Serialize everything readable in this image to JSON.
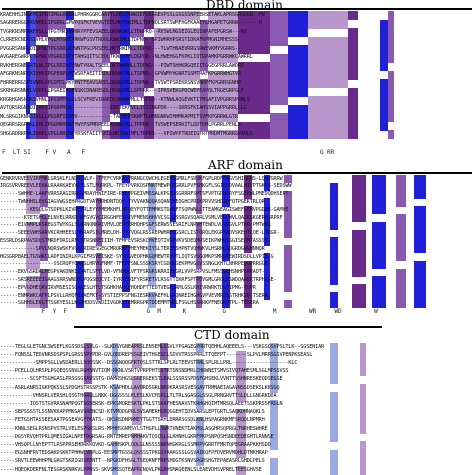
{
  "panels": [
    {
      "title": "DBD domain",
      "consensus": "F  LT SI    F V   A   F                                                                 G RR",
      "sequences": [
        "KRAEHHSINGEMVIPNTIMGLRHNNLPHRKGGRCAAYTLEELQKWWIEFVKGGEVPSSLGSGSSNPEERSETAKLAPRSGQGGGN--FW",
        "SAGRRERGGKKVNHELIPGRRLGPWYQSFKTVEVGTEELHKTRWIMLLTDPNQLSRTSWMFHGFKAAEYLHGAPETGRRW-------H",
        "TVGRKNSMPKKFVSLLTPGTMRSNPHRYPFEVSAEELQKWWSKLLTDWPRQ--RVSWLNGSEIGLEQIWPAFEPGRSW---RV",
        "CLRRERCNDGSIVHLVPGLMTGWEYRKWFGSVTRDQLKWWIMLLTDPNQ--GPIWHRHPSRSTIDKAFRPMGNIMHESSS-",
        "PVGGRSANPRDIIPNLTPGSRRLKYWNTPGCPRSEELHKTRWIMLLTDPQQ---TLWTHNAEVRRGSRWEVKMYVGRRS--",
        "AVGAREGWRPLTRHWLVDGRRIKPYTAHGQITSCEDLTKWWIMFLDGPQR--NLHWEHGGFKPKLIQTRPAMKPGRRWKCAWRRL",
        "RVKHERGNEGRTLNLIPGLRRIHPYNWTYRALTSEELQKTWWMHLLTDPNS---PIWTSHHKRGQEIITGGEGPRRLAWDRT",
        "AFGRKNSNPKKIVHVIPGPERPLMTWSRFAEITIEDLRKWWIMLLTSPNQ--GPVWMYHGNRTSSMTRAFKPGRRWHGTVR",
        "FHRRERRGSPIVNHLVPGSMTLPKYPNTFEAVSAEELQKWWIMLLTDPNQ--TVSWTPSREKRSNSVNRPFKPGRRSGNHP",
        "SKRHGRSNNKLVQPPLLPGREIPSFNSKCDNAREGDLHKWWIMLLSPPRR---IPRSVEKGPDCWEPEAPQLTRGEGRPGLF",
        "KRGRHGNSNDRIVHNLIPGSMTHLCLSCVFREVIRAEDLQKWWVMLLTSPNQ--KTNWLAQGEVKTITMSAFIVPGRRSPANLS",
        "AVTQRSRGNIDIINPIIPGRPHSR-------------INSTEKFVCLISIINGPDR----SKRSFKIAHSSVIAPPGRRLLLG",
        "MLSRGGIKNNSIVGLLPGSRFIDRNV------------TAEHFESKWPTLWHNGNKWIHHMKAPMITSVFKPGRRWLGTR",
        "QEGRRSRGPKKLVHLIPGGMRHSNPYWYPSPMRPEELKKWWVMLLTPPRR--TVSWEPSERKITLDDTKMLPGRRLPENLS",
        "SHGGRDRRPNLIVHPLVPGLRRIMPYRSKFAIITSEDLHKTRWIMFLTDPNS---VPIWYPTRDEIGTRTPRDMTMGRRGPAHLS"
      ],
      "colors": {
        "dark_blue": "#2020d8",
        "mid_blue": "#4a4ae8",
        "dark_purple": "#6a2a8c",
        "mid_purple": "#8a5ab0",
        "light_blue": "#9aa8e0",
        "light_purple": "#b898cc"
      }
    },
    {
      "title": "ARF domain",
      "consensus": "           F  Y  F                      G  M      K          G             M         WR     WD         W",
      "sequences": [
        "GENKRVRVEEVIRFMKLGRSKLFLNDSCWLP--TFEFCVRKASVRANGCQWCHLEGERQGMRLFSRVKFGPLRDFFAGVSHIQRNS-LQNVGRRW",
        "IRGSVRVREEVLEEAALRAAKKAEVVTFLSTLFQRKPL-TFEYPVRKQSPMATMEWPGRGRRLPVFSMKGFLSGIGSDVAALHIYPTGKPS-SEDSWW",
        "------SWHHE-LAAFVRRSRAGIRRGLMRAYHWIFIRE-RYEVPGEIVMSSALKPGEDSGRRRFSMTSFVPTGPHLRYFSGEEWLPMEDQDHSEPT-",
        "------TWNHHSLEVGIAGVWGSEHPRGDTVAYHRHDNTDQF-TYVVAKNQQASQANTNEQGHCPRIKPRVVSHDIPFQTPGERTRLQR",
        "----------KESQLGTSDPKLKIVRFFRLEYYPMEMKHFLHPQEYFQTTEMMKSTDASFTSQPWNLLTTEAMGEAGISWEFLEMVPGDRR-GAMVE",
        "--------KTETSHSLELNVELRRKDFDFGVGVCIRGGHFEIPEVFMENSHHVVCSGIDSSRGVSQARLVSMLVERPWVLQASKSKGERDSRPRF",
        "------EIVNMPLRSREGSTWYKGLSLRRNQNKRIVHVLQEPFRRHQHPSGFSERWSSESRIFLNRVHTEWDLVLVRGVLPTKR-PMTWKR",
        "------SEEEVWHSARVKCRHHEESLHKRAPSILMRELDH-TYTVQGLRSSREPWHRMYGSRCLISTQRQLEKGRKWDVSKEHTLQE-LTRGR-",
        "ESSRLDSRPAVSDQSTMRDFDRILRFLSTRSNKEIIIH-TFMFEVSRSKCHVEQTIVGFVKVSDEQMRSEIKPWHQSSGISEDMTASSSS-",
        "------------SPVLNQRSWSKFVGKPRIRESGEGCMRQRWFPHEYMEKIYSLTEREESHPNTVQHWKVLHSRNLGDGRDGRGHNNQR",
        "HGSGRPBAELTGSWRCLADFINIRLKPGIFRSVEISKE-SYSDGVEQPHKGQMEWTRVDTLIQTSVSGQMKPSMPGEEWIRDSDLLVPIE-G",
        "------------------SSCRQPYGAASLHRVGFNMF-TFEPFSNLSSSKSRYCGDHNGEKPMVGSVSSNGLKHTLNHRPEDGPRRGGE-",
        "------EKVGSRDALHEGPVAKDNKISAATLSFTLVD-VFNWQLVFTFSRGRSKRRIEHGRLVVPSRPVSLFMSSVEHSNHPERRADT-",
        "------SRSREEEEIGAAGSRRSWNDHLPQGSEQCYI-IYRTEDIFYRSRETVLRSGYTIKRFSPTPDVGMLGRGLESWDQARKKTRPHQSE-",
        "------EPVGDHEQRVIRVMSESISGAGESLHTLTSGHKHAHCFHQHDFTTEDTVEGKSRMLGSLKHIVRWRKTDGQIPMG-TQPR",
        "------ENMRWKCAFPLPSVLLRHQFQVAEFKT-SYSTIEPPSFNGIESRKVAEFHLGDQNREIHGHGVPVEVMRSSSTRHKSN-TSERA-",
        "------SGHHSLEKGTTSGKYESLLKGRHDDSVWDIIVGDKTFEMRRGPRTDDEMMTWRLFSGLHSSRRKPFNEGKVTPL-TESERA"
      ]
    },
    {
      "title": "CTD domain",
      "consensus": "                                                                                        ",
      "sequences": [
        "-----TEGLGLETGNCSWSEFLKGSSDSLSVLG--SLKDSYGNEAPRSLENSEMLSSVLYPGAGEGPRRTQEHHLAQEEELS---VSKGSQSVPSLTLK--SGSENIAR",
        "-----FQNSSLTEDVNRSDSPSPLGRSSSPYPDR-GVLQRDREPSSGEIVTHGESCLSDVVTRSSPRRLTTQEFPT-------SLPVLMRRSGSVPENPKSEASL",
        "------------SMPPSGLLWSDAERLLSQQSSK--DSSGNQQGFRTQSLSTTRLSPLRLTEEVSTRNLSPLRLLPRL-------------------KLC",
        "-----PCELLQLHRSPLPGQEQSSNVLRGHSNVTIQM-RKNLVSRTVPRPPHTSSTRTSNSNDMRLCHRWNETSMVSIVQTAHESMLSGLMPSSVSS",
        "----------SCSFTSGHGASLPRSGSGSAVSSTG-DAMRSHGSLGGERGEKSTLEALSSSRSSPDSFGHSEKLVVNTTSSHNRESKEQDSEGSE",
        "-----ASRLANRSIGKPQKSSLSPDGHSTRSSPSTK-KSAPHDLLAVNRDSGRLNKDKRASRSVESGAVTRMNAEIAGAVNSSDSEKSLKKSGQ",
        "-----------VHNSRLVERSHLQSGTHGRGLLNKK-DGGSSSLKLESLKVCMSPLLTLTRLSGASGLSSGLPRNGRVTTSLDLLGNGRKDDA",
        "----------IQSTSTGVRRSNAMPQGTSGSERSK-EPKSMQRESKTLPKLSTSKAFHESNAVSTKRHGHQIMTMRSQLAEETSSKPRSSFRDLN",
        "-----SEPSSSSTLSSNVKKAPPMKGAVSRENCSD-KTVMQDGPRLSVSAMERHSRQGGEHTIDVSARSLEPTGRTLSAQKDHNAQKLS",
        "-----FETGSHTASSEESAATPGSEAVGFTKATS--QKSRSDNPRMEYTGGTTSRHLDRRRSGSDLKNLHSPAGRNKMFSRQDLNPMRH",
        "-----KNNLSEGLRSNSPVSTRLVELESPSRSLRS-MPHHSGNMSYLSTHGPLLSWRTVNEKTIAKMSLASGHRSQPRGLTNRHESWHRE",
        "-----DGSYRVQHTPRLQMESIGALNPETDGRSAG-RNTEMREPNMHAKVTQSQSLGLKHNHLGKRFPKPSNPQSHSNDEEDEGHTLRNNSE",
        "-----VHSQPLLNYEPTTLRSPPRSEHDRKKQVKD-GAHHSKPLQQLGLNSSSSNKNHGKRGLSSMRPVGRRTFMRTQPEGRAAPKKHSDD",
        "-----EGSNHFRVTEDSAKDSKKTPHHWLVDPLG-EESMPTGSSLQSSSSTPKGSYAAKGSSLGSVAIKQFPFDVERVMDHLDTMKHRAP",
        "-----SRVTLEEWHHPMLGRGTSKRIGDSEENTT--NPGKDFHSGLTSEQKNFFRPSHDGTKSNVSRGRSHGTEPAEASRLGHDLPELS",
        "-----HQEQKDERFNLTESGRSKNRKVLPPNSS-SKVSMSSQTEAPRCNQVLPKGRHSMAQEENLSLEAEVDHSVPRELTEESGHVSE"
      ]
    }
  ]
}
